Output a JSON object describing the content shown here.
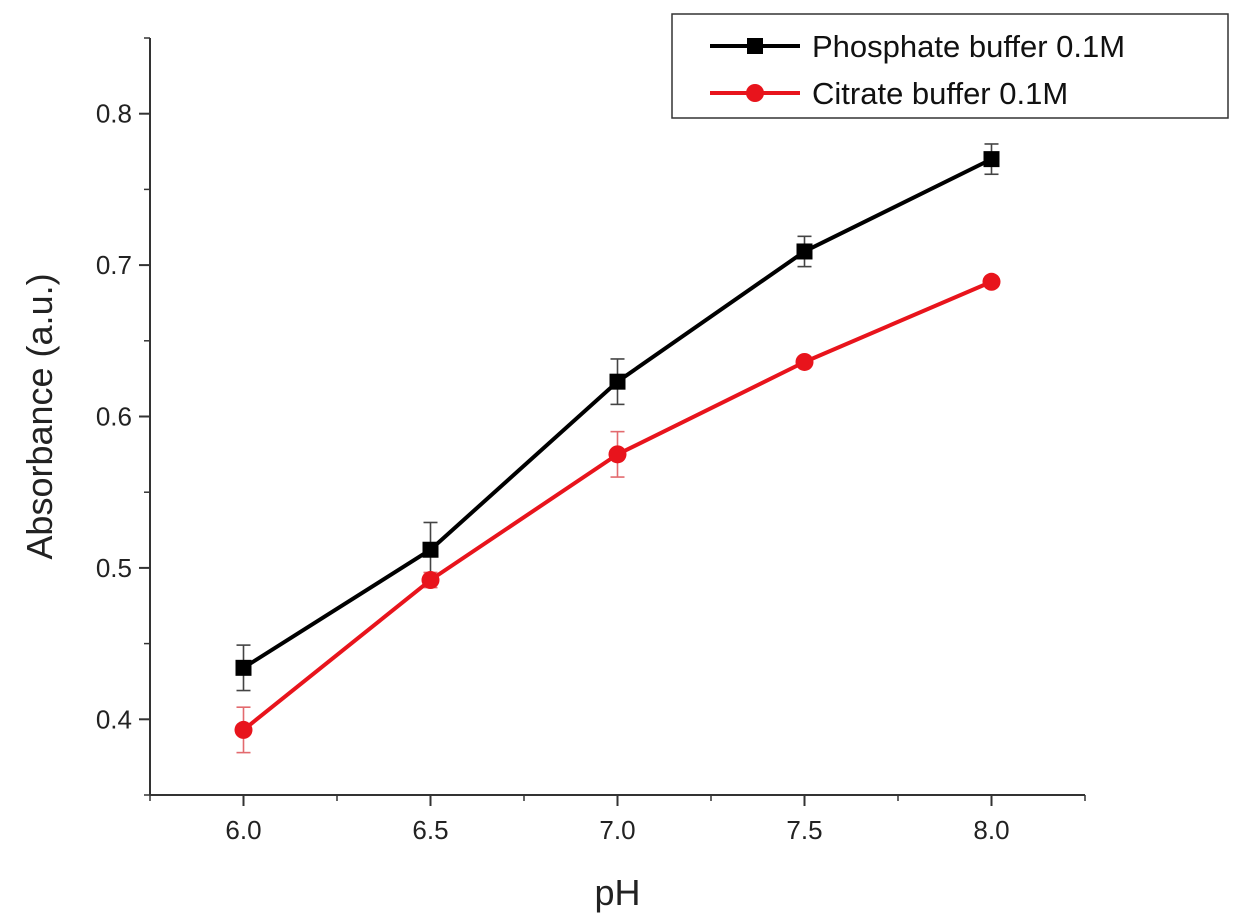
{
  "chart_data": {
    "type": "line",
    "title": "",
    "xlabel": "pH",
    "ylabel": "Absorbance (a.u.)",
    "xlim": [
      5.75,
      8.25
    ],
    "ylim": [
      0.35,
      0.85
    ],
    "x": [
      6.0,
      6.5,
      7.0,
      7.5,
      8.0
    ],
    "x_ticks": [
      6.0,
      6.5,
      7.0,
      7.5,
      8.0
    ],
    "x_tick_labels": [
      "6.0",
      "6.5",
      "7.0",
      "7.5",
      "8.0"
    ],
    "y_ticks": [
      0.4,
      0.5,
      0.6,
      0.7,
      0.8
    ],
    "y_tick_labels": [
      "0.4",
      "0.5",
      "0.6",
      "0.7",
      "0.8"
    ],
    "grid": false,
    "legend_position": "top-right",
    "series": [
      {
        "name": "Phosphate buffer 0.1M",
        "marker": "square",
        "color": "#000000",
        "values": [
          0.434,
          0.512,
          0.623,
          0.709,
          0.77
        ],
        "errors": [
          0.015,
          0.018,
          0.015,
          0.01,
          0.01
        ]
      },
      {
        "name": "Citrate buffer 0.1M",
        "marker": "circle",
        "color": "#e8141c",
        "values": [
          0.393,
          0.492,
          0.575,
          0.636,
          0.689
        ],
        "errors": [
          0.015,
          0.005,
          0.015,
          0.003,
          0.002
        ]
      }
    ]
  }
}
